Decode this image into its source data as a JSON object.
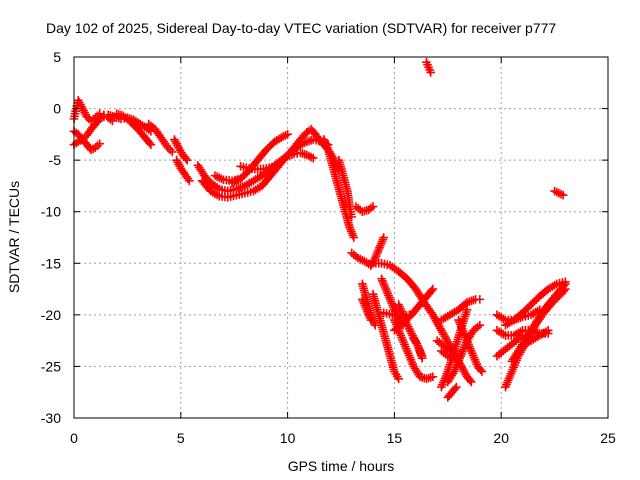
{
  "chart_data": {
    "type": "scatter",
    "title": "Day 102 of 2025, Sidereal Day-to-day VTEC variation (SDTVAR) for receiver p777",
    "xlabel": "GPS time / hours",
    "ylabel": "SDTVAR / TECUs",
    "xlim": [
      0,
      25
    ],
    "ylim": [
      -30,
      5
    ],
    "xticks": [
      0,
      5,
      10,
      15,
      20,
      25
    ],
    "yticks": [
      5,
      0,
      -5,
      -10,
      -15,
      -20,
      -25,
      -30
    ],
    "grid": true,
    "marker": "plus",
    "color": "#ff0000",
    "series": [
      {
        "points": [
          [
            0.0,
            -1.0
          ],
          [
            0.1,
            0.0
          ],
          [
            0.2,
            0.8
          ],
          [
            0.4,
            0.0
          ],
          [
            0.6,
            -0.8
          ],
          [
            0.8,
            -1.2
          ],
          [
            1.0,
            -0.9
          ],
          [
            1.2,
            -0.5
          ],
          [
            1.4,
            -0.6
          ]
        ]
      },
      {
        "points": [
          [
            0.0,
            -3.5
          ],
          [
            0.2,
            -3.2
          ],
          [
            0.4,
            -3.0
          ],
          [
            0.6,
            -2.6
          ],
          [
            0.8,
            -2.0
          ],
          [
            1.0,
            -1.5
          ],
          [
            1.2,
            -1.0
          ],
          [
            1.4,
            -0.8
          ],
          [
            1.6,
            -0.9
          ],
          [
            1.8,
            -1.2
          ]
        ]
      },
      {
        "points": [
          [
            0.0,
            -2.2
          ],
          [
            0.2,
            -2.5
          ],
          [
            0.4,
            -3.0
          ],
          [
            0.6,
            -3.5
          ],
          [
            0.8,
            -4.0
          ],
          [
            1.0,
            -3.8
          ],
          [
            1.2,
            -3.4
          ]
        ]
      },
      {
        "points": [
          [
            1.6,
            -0.6
          ],
          [
            1.9,
            -0.8
          ],
          [
            2.2,
            -1.0
          ],
          [
            2.5,
            -0.9
          ],
          [
            2.8,
            -1.1
          ],
          [
            3.1,
            -1.5
          ],
          [
            3.4,
            -1.9
          ],
          [
            3.6,
            -2.2
          ]
        ]
      },
      {
        "points": [
          [
            2.0,
            -0.5
          ],
          [
            2.3,
            -0.7
          ],
          [
            2.6,
            -1.2
          ],
          [
            2.9,
            -1.8
          ],
          [
            3.2,
            -2.5
          ],
          [
            3.4,
            -3.0
          ],
          [
            3.6,
            -3.5
          ]
        ]
      },
      {
        "points": [
          [
            3.5,
            -1.5
          ],
          [
            3.8,
            -2.0
          ],
          [
            4.0,
            -2.6
          ],
          [
            4.2,
            -3.2
          ],
          [
            4.4,
            -3.8
          ],
          [
            4.6,
            -4.2
          ]
        ]
      },
      {
        "points": [
          [
            4.7,
            -3.0
          ],
          [
            4.9,
            -3.8
          ],
          [
            5.1,
            -4.5
          ],
          [
            5.3,
            -5.0
          ]
        ]
      },
      {
        "points": [
          [
            4.8,
            -5.0
          ],
          [
            5.0,
            -5.8
          ],
          [
            5.2,
            -6.4
          ],
          [
            5.4,
            -7.0
          ]
        ]
      },
      {
        "points": [
          [
            5.8,
            -5.5
          ],
          [
            6.1,
            -6.5
          ],
          [
            6.4,
            -7.2
          ],
          [
            6.8,
            -7.8
          ],
          [
            7.2,
            -8.0
          ],
          [
            7.6,
            -7.8
          ],
          [
            8.0,
            -7.5
          ],
          [
            8.4,
            -7.0
          ],
          [
            8.8,
            -6.5
          ],
          [
            9.1,
            -6.0
          ],
          [
            9.4,
            -5.5
          ],
          [
            9.7,
            -5.0
          ],
          [
            10.0,
            -4.6
          ],
          [
            10.3,
            -4.4
          ],
          [
            10.6,
            -4.3
          ],
          [
            10.9,
            -4.5
          ],
          [
            11.2,
            -4.8
          ]
        ]
      },
      {
        "points": [
          [
            6.0,
            -7.0
          ],
          [
            6.4,
            -8.0
          ],
          [
            6.8,
            -8.5
          ],
          [
            7.2,
            -8.6
          ],
          [
            7.6,
            -8.4
          ],
          [
            8.0,
            -8.2
          ],
          [
            8.4,
            -8.0
          ],
          [
            8.8,
            -7.5
          ],
          [
            9.2,
            -6.5
          ],
          [
            9.6,
            -5.5
          ],
          [
            10.0,
            -4.5
          ],
          [
            10.4,
            -3.8
          ],
          [
            10.8,
            -3.3
          ],
          [
            11.2,
            -3.0
          ],
          [
            11.6,
            -3.2
          ],
          [
            11.9,
            -3.5
          ]
        ]
      },
      {
        "points": [
          [
            7.4,
            -7.2
          ],
          [
            7.8,
            -6.8
          ],
          [
            8.2,
            -6.0
          ],
          [
            8.6,
            -5.0
          ],
          [
            9.0,
            -4.0
          ],
          [
            9.4,
            -3.2
          ],
          [
            9.8,
            -2.7
          ],
          [
            10.0,
            -2.5
          ]
        ]
      },
      {
        "points": [
          [
            6.6,
            -6.5
          ],
          [
            7.0,
            -6.9
          ],
          [
            7.4,
            -7.0
          ],
          [
            7.8,
            -6.8
          ]
        ]
      },
      {
        "points": [
          [
            7.8,
            -5.6
          ],
          [
            8.2,
            -5.8
          ],
          [
            8.6,
            -5.9
          ],
          [
            9.0,
            -5.8
          ],
          [
            9.4,
            -5.6
          ]
        ]
      },
      {
        "points": [
          [
            10.0,
            -4.5
          ],
          [
            10.3,
            -3.8
          ],
          [
            10.6,
            -3.0
          ],
          [
            10.9,
            -2.3
          ],
          [
            11.1,
            -2.0
          ],
          [
            11.3,
            -2.5
          ],
          [
            11.6,
            -3.3
          ],
          [
            11.9,
            -4.0
          ],
          [
            12.2,
            -5.0
          ],
          [
            12.4,
            -6.0
          ]
        ]
      },
      {
        "points": [
          [
            11.7,
            -3.0
          ],
          [
            11.9,
            -4.0
          ],
          [
            12.1,
            -5.5
          ],
          [
            12.3,
            -7.0
          ],
          [
            12.5,
            -8.5
          ],
          [
            12.7,
            -10.0
          ],
          [
            12.9,
            -11.5
          ],
          [
            13.1,
            -12.5
          ]
        ]
      },
      {
        "points": [
          [
            12.4,
            -5.0
          ],
          [
            12.6,
            -6.5
          ],
          [
            12.8,
            -8.0
          ],
          [
            12.9,
            -9.5
          ],
          [
            13.0,
            -10.5
          ]
        ]
      },
      {
        "points": [
          [
            13.2,
            -9.5
          ],
          [
            13.5,
            -10.0
          ],
          [
            13.8,
            -9.8
          ],
          [
            14.0,
            -9.5
          ]
        ]
      },
      {
        "points": [
          [
            13.0,
            -14.0
          ],
          [
            13.3,
            -14.5
          ],
          [
            13.6,
            -14.8
          ],
          [
            13.9,
            -15.2
          ]
        ]
      },
      {
        "points": [
          [
            14.5,
            -12.5
          ],
          [
            14.3,
            -13.5
          ],
          [
            14.1,
            -14.5
          ],
          [
            13.9,
            -15.2
          ]
        ]
      },
      {
        "points": [
          [
            14.0,
            -15.0
          ],
          [
            14.4,
            -15.0
          ],
          [
            14.8,
            -15.2
          ],
          [
            15.2,
            -15.8
          ],
          [
            15.6,
            -16.5
          ],
          [
            16.0,
            -17.5
          ],
          [
            16.4,
            -18.8
          ],
          [
            16.8,
            -20.0
          ],
          [
            17.2,
            -21.5
          ],
          [
            17.6,
            -23.0
          ],
          [
            18.0,
            -24.5
          ],
          [
            18.4,
            -26.0
          ],
          [
            18.6,
            -26.5
          ]
        ]
      },
      {
        "points": [
          [
            14.4,
            -16.5
          ],
          [
            14.6,
            -17.5
          ],
          [
            14.8,
            -18.5
          ],
          [
            15.0,
            -19.5
          ],
          [
            15.2,
            -20.5
          ],
          [
            15.4,
            -21.0
          ]
        ]
      },
      {
        "points": [
          [
            13.5,
            -17.0
          ],
          [
            13.7,
            -18.5
          ],
          [
            13.9,
            -20.0
          ],
          [
            14.1,
            -21.0
          ]
        ]
      },
      {
        "points": [
          [
            13.5,
            -18.5
          ],
          [
            13.7,
            -19.5
          ],
          [
            13.9,
            -20.5
          ]
        ]
      },
      {
        "points": [
          [
            14.0,
            -18.0
          ],
          [
            14.2,
            -19.5
          ],
          [
            14.4,
            -21.0
          ],
          [
            14.6,
            -22.5
          ],
          [
            14.8,
            -24.0
          ],
          [
            15.0,
            -25.5
          ],
          [
            15.2,
            -26.2
          ]
        ]
      },
      {
        "points": [
          [
            14.5,
            -19.8
          ],
          [
            14.9,
            -20.0
          ],
          [
            15.3,
            -20.2
          ],
          [
            15.7,
            -20.0
          ]
        ]
      },
      {
        "points": [
          [
            15.0,
            -21.5
          ],
          [
            15.4,
            -20.8
          ],
          [
            15.8,
            -20.0
          ],
          [
            16.2,
            -19.0
          ],
          [
            16.6,
            -18.0
          ],
          [
            16.8,
            -17.5
          ]
        ]
      },
      {
        "points": [
          [
            15.0,
            -20.5
          ],
          [
            15.3,
            -22.0
          ],
          [
            15.6,
            -23.5
          ],
          [
            15.9,
            -25.0
          ],
          [
            16.2,
            -26.0
          ],
          [
            16.5,
            -26.2
          ],
          [
            16.8,
            -26.0
          ]
        ]
      },
      {
        "points": [
          [
            15.2,
            -19.0
          ],
          [
            15.5,
            -20.5
          ],
          [
            15.8,
            -21.8
          ],
          [
            16.1,
            -23.0
          ],
          [
            16.3,
            -24.0
          ]
        ]
      },
      {
        "points": [
          [
            15.9,
            -22.3
          ],
          [
            16.1,
            -23.0
          ],
          [
            16.3,
            -24.2
          ]
        ]
      },
      {
        "points": [
          [
            16.5,
            4.5
          ],
          [
            16.6,
            4.0
          ],
          [
            16.7,
            3.5
          ]
        ]
      },
      {
        "points": [
          [
            17.2,
            -20.5
          ],
          [
            17.6,
            -20.0
          ],
          [
            18.0,
            -19.5
          ],
          [
            18.4,
            -18.8
          ],
          [
            18.8,
            -18.5
          ],
          [
            19.0,
            -18.5
          ]
        ]
      },
      {
        "points": [
          [
            17.2,
            -23.5
          ],
          [
            17.5,
            -24.0
          ],
          [
            17.8,
            -24.2
          ],
          [
            18.1,
            -24.0
          ]
        ]
      },
      {
        "points": [
          [
            17.5,
            -26.5
          ],
          [
            17.8,
            -25.5
          ],
          [
            18.1,
            -24.0
          ],
          [
            18.4,
            -22.5
          ],
          [
            18.7,
            -21.5
          ],
          [
            19.0,
            -21.0
          ]
        ]
      },
      {
        "points": [
          [
            17.2,
            -27.0
          ],
          [
            17.5,
            -25.5
          ],
          [
            17.8,
            -23.5
          ],
          [
            18.1,
            -21.5
          ],
          [
            18.4,
            -19.5
          ]
        ]
      },
      {
        "points": [
          [
            17.5,
            -28.0
          ],
          [
            17.7,
            -27.5
          ],
          [
            17.9,
            -27.0
          ]
        ]
      },
      {
        "points": [
          [
            17.0,
            -22.5
          ],
          [
            17.3,
            -23.0
          ],
          [
            17.6,
            -23.5
          ],
          [
            17.9,
            -23.5
          ]
        ]
      },
      {
        "points": [
          [
            18.0,
            -20.5
          ],
          [
            18.3,
            -22.0
          ],
          [
            18.6,
            -23.5
          ],
          [
            18.9,
            -25.0
          ],
          [
            19.1,
            -25.5
          ]
        ]
      },
      {
        "points": [
          [
            19.8,
            -20.0
          ],
          [
            20.2,
            -20.5
          ],
          [
            20.6,
            -20.5
          ],
          [
            21.0,
            -20.2
          ],
          [
            21.4,
            -20.0
          ],
          [
            21.8,
            -19.5
          ]
        ]
      },
      {
        "points": [
          [
            19.8,
            -21.5
          ],
          [
            20.2,
            -22.0
          ],
          [
            20.6,
            -22.0
          ],
          [
            21.0,
            -21.5
          ],
          [
            21.4,
            -21.5
          ],
          [
            21.8,
            -21.8
          ],
          [
            22.2,
            -21.8
          ]
        ]
      },
      {
        "points": [
          [
            19.8,
            -24.0
          ],
          [
            20.1,
            -23.5
          ],
          [
            20.4,
            -23.0
          ],
          [
            20.7,
            -22.5
          ],
          [
            21.0,
            -22.0
          ]
        ]
      },
      {
        "points": [
          [
            20.2,
            -27.0
          ],
          [
            20.5,
            -25.5
          ],
          [
            20.8,
            -24.0
          ],
          [
            21.2,
            -22.5
          ],
          [
            21.6,
            -21.0
          ],
          [
            22.0,
            -19.8
          ],
          [
            22.4,
            -18.8
          ],
          [
            22.8,
            -18.0
          ],
          [
            23.0,
            -17.5
          ]
        ]
      },
      {
        "points": [
          [
            20.5,
            -24.5
          ],
          [
            20.8,
            -23.5
          ],
          [
            21.1,
            -22.5
          ],
          [
            21.4,
            -21.5
          ],
          [
            21.7,
            -20.5
          ],
          [
            22.0,
            -19.5
          ],
          [
            22.4,
            -18.5
          ],
          [
            22.8,
            -17.5
          ],
          [
            23.0,
            -17.0
          ]
        ]
      },
      {
        "points": [
          [
            20.2,
            -21.0
          ],
          [
            20.6,
            -20.5
          ],
          [
            21.0,
            -19.8
          ],
          [
            21.4,
            -19.0
          ],
          [
            21.8,
            -18.2
          ],
          [
            22.2,
            -17.5
          ],
          [
            22.6,
            -17.0
          ],
          [
            23.0,
            -16.8
          ]
        ]
      },
      {
        "points": [
          [
            21.0,
            -23.0
          ],
          [
            21.4,
            -22.5
          ],
          [
            21.8,
            -22.0
          ],
          [
            22.2,
            -21.5
          ]
        ]
      },
      {
        "points": [
          [
            22.5,
            -8.0
          ],
          [
            22.7,
            -8.2
          ],
          [
            22.9,
            -8.4
          ]
        ]
      }
    ]
  }
}
